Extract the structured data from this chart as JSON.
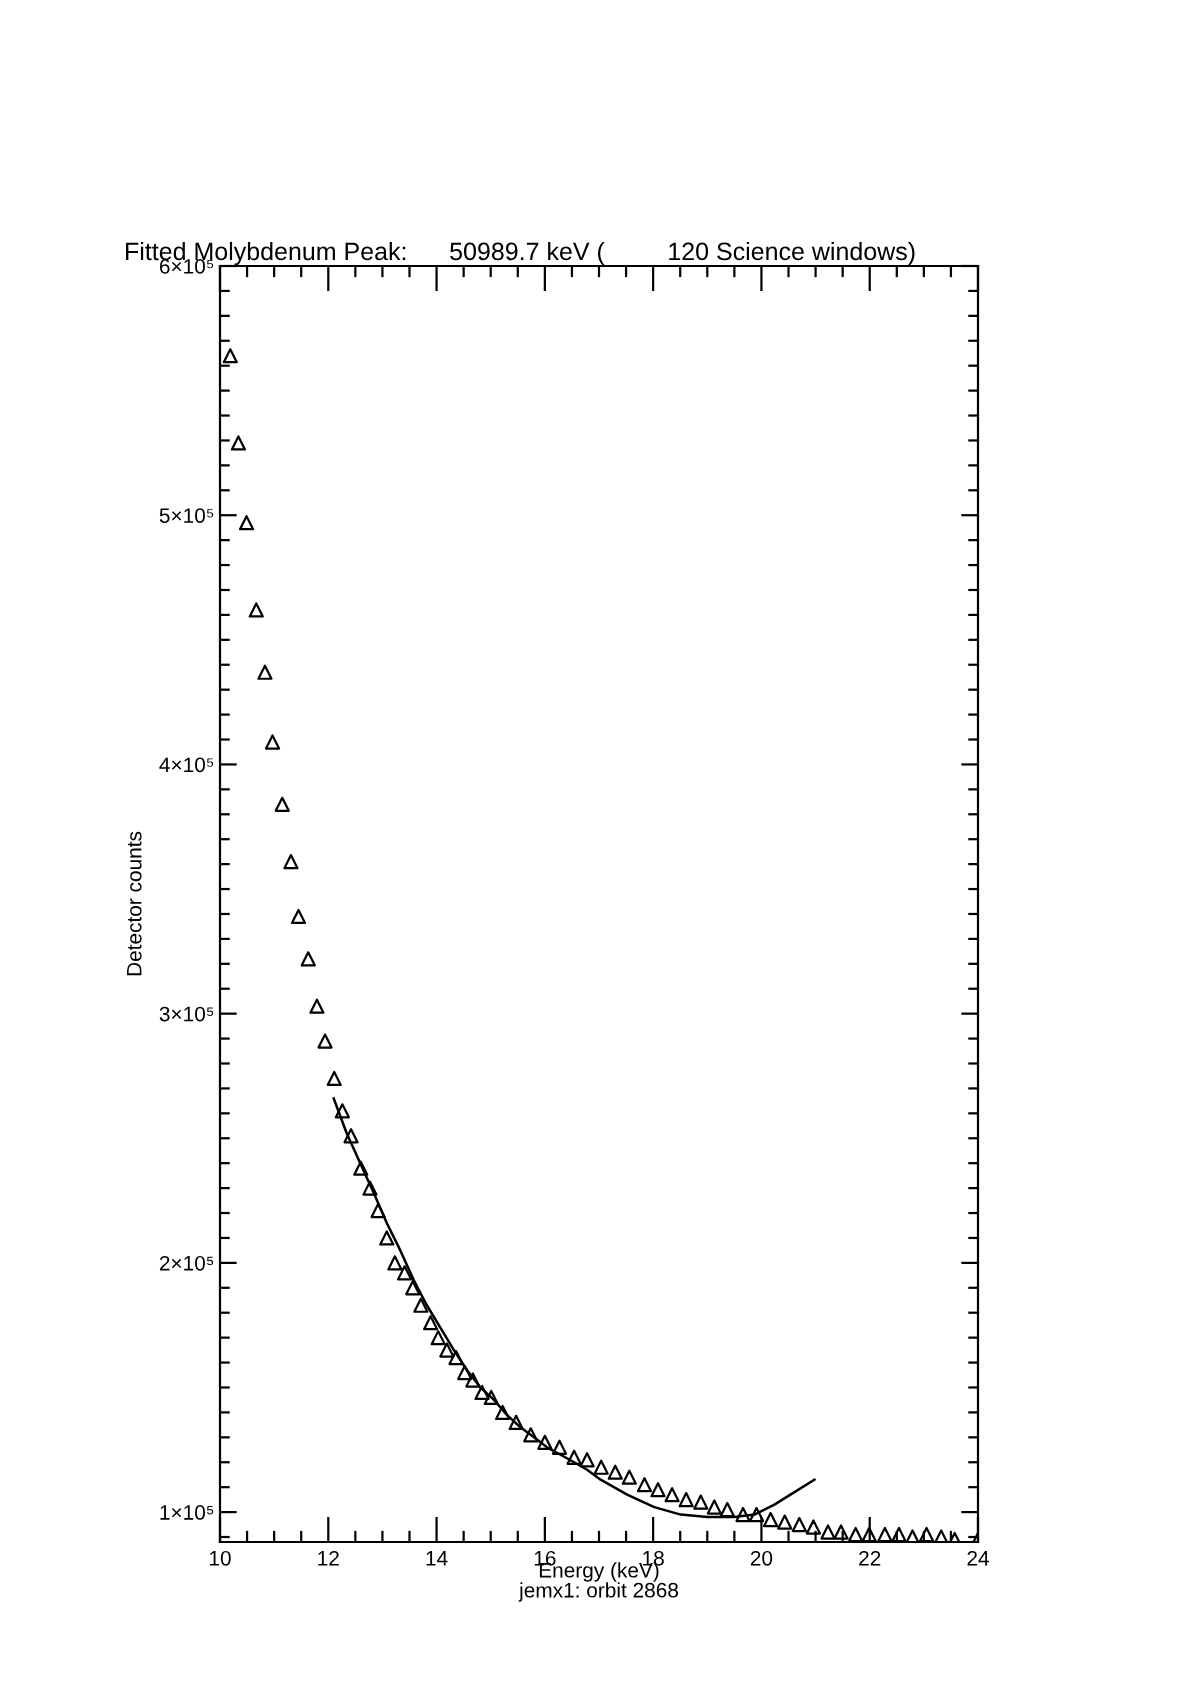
{
  "chart_data": {
    "type": "scatter",
    "title": "Fitted Molybdenum Peak:      50989.7 keV (         120 Science windows)",
    "xlabel": "Energy (keV)",
    "ylabel": "Detector counts",
    "annotations": [
      "jemx1: orbit 2868"
    ],
    "xlim": [
      10,
      24
    ],
    "ylim": [
      88000,
      600000
    ],
    "xticks": [
      10,
      {
        "value": 10.5,
        "label": null
      },
      {
        "value": 11,
        "label": null
      },
      {
        "value": 11.5,
        "label": null
      },
      12,
      {
        "value": 12.5,
        "label": null
      },
      {
        "value": 13,
        "label": null
      },
      {
        "value": 13.5,
        "label": null
      },
      14,
      {
        "value": 14.5,
        "label": null
      },
      {
        "value": 15,
        "label": null
      },
      {
        "value": 15.5,
        "label": null
      },
      16,
      {
        "value": 16.5,
        "label": null
      },
      {
        "value": 17,
        "label": null
      },
      {
        "value": 17.5,
        "label": null
      },
      18,
      {
        "value": 18.5,
        "label": null
      },
      {
        "value": 19,
        "label": null
      },
      {
        "value": 19.5,
        "label": null
      },
      20,
      {
        "value": 20.5,
        "label": null
      },
      {
        "value": 21,
        "label": null
      },
      {
        "value": 21.5,
        "label": null
      },
      22,
      {
        "value": 22.5,
        "label": null
      },
      {
        "value": 23,
        "label": null
      },
      {
        "value": 23.5,
        "label": null
      },
      24
    ],
    "yticks": [
      {
        "value": 90000,
        "label": null
      },
      {
        "value": 100000,
        "label": "1×10⁵"
      },
      {
        "value": 110000,
        "label": null
      },
      {
        "value": 120000,
        "label": null
      },
      {
        "value": 130000,
        "label": null
      },
      {
        "value": 140000,
        "label": null
      },
      {
        "value": 150000,
        "label": null
      },
      {
        "value": 160000,
        "label": null
      },
      {
        "value": 170000,
        "label": null
      },
      {
        "value": 180000,
        "label": null
      },
      {
        "value": 190000,
        "label": null
      },
      {
        "value": 200000,
        "label": "2×10⁵"
      },
      {
        "value": 210000,
        "label": null
      },
      {
        "value": 220000,
        "label": null
      },
      {
        "value": 230000,
        "label": null
      },
      {
        "value": 240000,
        "label": null
      },
      {
        "value": 250000,
        "label": null
      },
      {
        "value": 260000,
        "label": null
      },
      {
        "value": 270000,
        "label": null
      },
      {
        "value": 280000,
        "label": null
      },
      {
        "value": 290000,
        "label": null
      },
      {
        "value": 300000,
        "label": "3×10⁵"
      },
      {
        "value": 310000,
        "label": null
      },
      {
        "value": 320000,
        "label": null
      },
      {
        "value": 330000,
        "label": null
      },
      {
        "value": 340000,
        "label": null
      },
      {
        "value": 350000,
        "label": null
      },
      {
        "value": 360000,
        "label": null
      },
      {
        "value": 370000,
        "label": null
      },
      {
        "value": 380000,
        "label": null
      },
      {
        "value": 390000,
        "label": null
      },
      {
        "value": 400000,
        "label": "4×10⁵"
      },
      {
        "value": 410000,
        "label": null
      },
      {
        "value": 420000,
        "label": null
      },
      {
        "value": 430000,
        "label": null
      },
      {
        "value": 440000,
        "label": null
      },
      {
        "value": 450000,
        "label": null
      },
      {
        "value": 460000,
        "label": null
      },
      {
        "value": 470000,
        "label": null
      },
      {
        "value": 480000,
        "label": null
      },
      {
        "value": 490000,
        "label": null
      },
      {
        "value": 500000,
        "label": "5×10⁵"
      },
      {
        "value": 510000,
        "label": null
      },
      {
        "value": 520000,
        "label": null
      },
      {
        "value": 530000,
        "label": null
      },
      {
        "value": 540000,
        "label": null
      },
      {
        "value": 550000,
        "label": null
      },
      {
        "value": 560000,
        "label": null
      },
      {
        "value": 570000,
        "label": null
      },
      {
        "value": 580000,
        "label": null
      },
      {
        "value": 590000,
        "label": null
      },
      {
        "value": 600000,
        "label": "6×10⁵"
      }
    ],
    "series": [
      {
        "marker": "triangle",
        "color": "#000000",
        "x": [
          10.19,
          10.34,
          10.49,
          10.67,
          10.83,
          10.97,
          11.15,
          11.31,
          11.45,
          11.63,
          11.79,
          11.94,
          12.11,
          12.26,
          12.42,
          12.6,
          12.77,
          12.92,
          13.08,
          13.23,
          13.41,
          13.56,
          13.71,
          13.89,
          14.03,
          14.19,
          14.36,
          14.52,
          14.67,
          14.84,
          15.01,
          15.22,
          15.47,
          15.74,
          16.0,
          16.27,
          16.54,
          16.78,
          17.04,
          17.3,
          17.56,
          17.84,
          18.09,
          18.35,
          18.61,
          18.88,
          19.13,
          19.37,
          19.66,
          19.91,
          20.17,
          20.43,
          20.7,
          20.96,
          21.23,
          21.47,
          21.74,
          21.99,
          22.28,
          22.54,
          22.79,
          23.05,
          23.32,
          23.57,
          24.0
        ],
        "values": [
          564000,
          529000,
          497000,
          462000,
          437000,
          409000,
          384000,
          361000,
          339000,
          322000,
          303000,
          289000,
          274000,
          261000,
          251000,
          238000,
          230000,
          221000,
          210000,
          200000,
          196000,
          190000,
          183000,
          176000,
          170000,
          165000,
          162000,
          156000,
          153000,
          148000,
          146000,
          140000,
          136000,
          131000,
          128000,
          126000,
          122000,
          121000,
          118000,
          116000,
          114000,
          111000,
          109000,
          107000,
          105000,
          104000,
          102000,
          101000,
          99000,
          99000,
          97000,
          96000,
          95000,
          94000,
          92000,
          92000,
          91000,
          91000,
          91000,
          91000,
          90000,
          91000,
          90000,
          89000,
          89000
        ]
      },
      {
        "type": "line",
        "color": "#000000",
        "x": [
          12.1,
          12.34,
          12.59,
          12.84,
          13.08,
          13.33,
          13.58,
          13.82,
          14.07,
          14.32,
          14.56,
          14.81,
          15.06,
          15.3,
          15.55,
          15.8,
          16.04,
          16.29,
          16.54,
          16.78,
          17.03,
          17.52,
          18.02,
          18.51,
          19.0,
          19.5,
          19.87,
          20.24,
          20.61,
          20.98
        ],
        "values": [
          266000,
          252000,
          240000,
          228000,
          216000,
          205000,
          193000,
          183000,
          174000,
          165000,
          157000,
          150000,
          145000,
          139000,
          134000,
          130000,
          126000,
          123000,
          120000,
          117000,
          113000,
          107000,
          102000,
          99000,
          98000,
          98000,
          99000,
          103000,
          108000,
          113000
        ]
      }
    ]
  }
}
